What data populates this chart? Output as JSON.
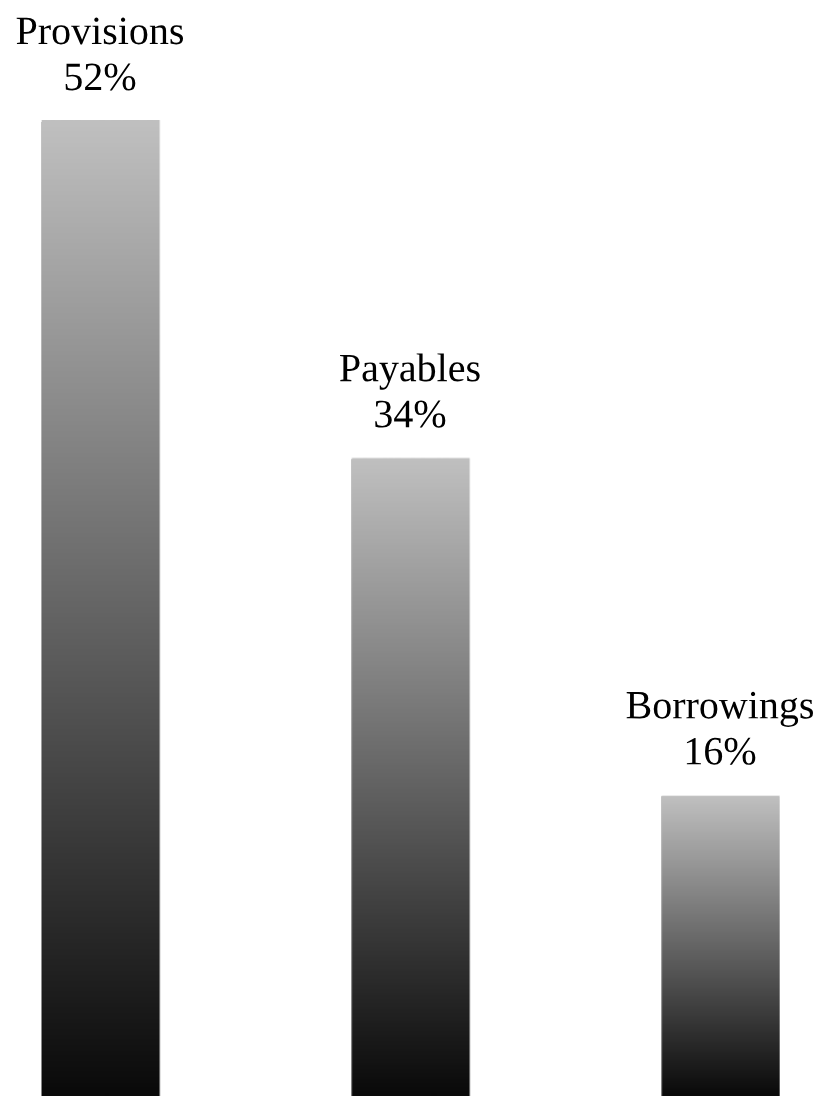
{
  "chart_data": {
    "type": "bar",
    "categories": [
      "Provisions",
      "Payables",
      "Borrowings"
    ],
    "values": [
      52,
      34,
      16
    ],
    "value_labels": [
      "52%",
      "34%",
      "16%"
    ],
    "color": "#c0c0c0",
    "tick_labels": false
  }
}
